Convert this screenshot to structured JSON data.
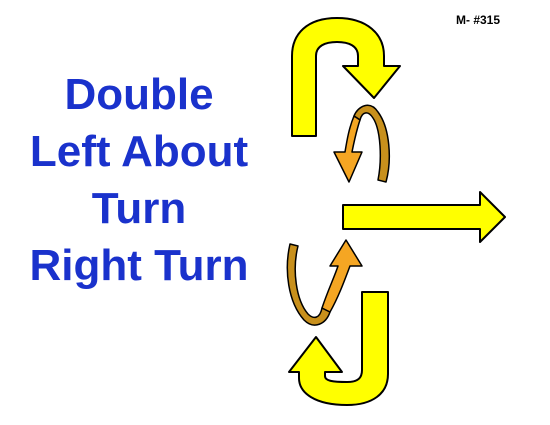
{
  "sign_number": "M- #315",
  "title_lines": [
    "Double",
    "Left About",
    "Turn",
    "Right Turn"
  ],
  "colors": {
    "title_text": "#1a32cc",
    "arrow_fill": "#ffff00",
    "twist_fill": "#f5a623",
    "twist_back": "#c8901c",
    "outline": "#000000"
  },
  "icons": [
    "left-about-turn-arrow-icon",
    "turn-twist-arrow-icon",
    "right-turn-arrow-icon"
  ]
}
